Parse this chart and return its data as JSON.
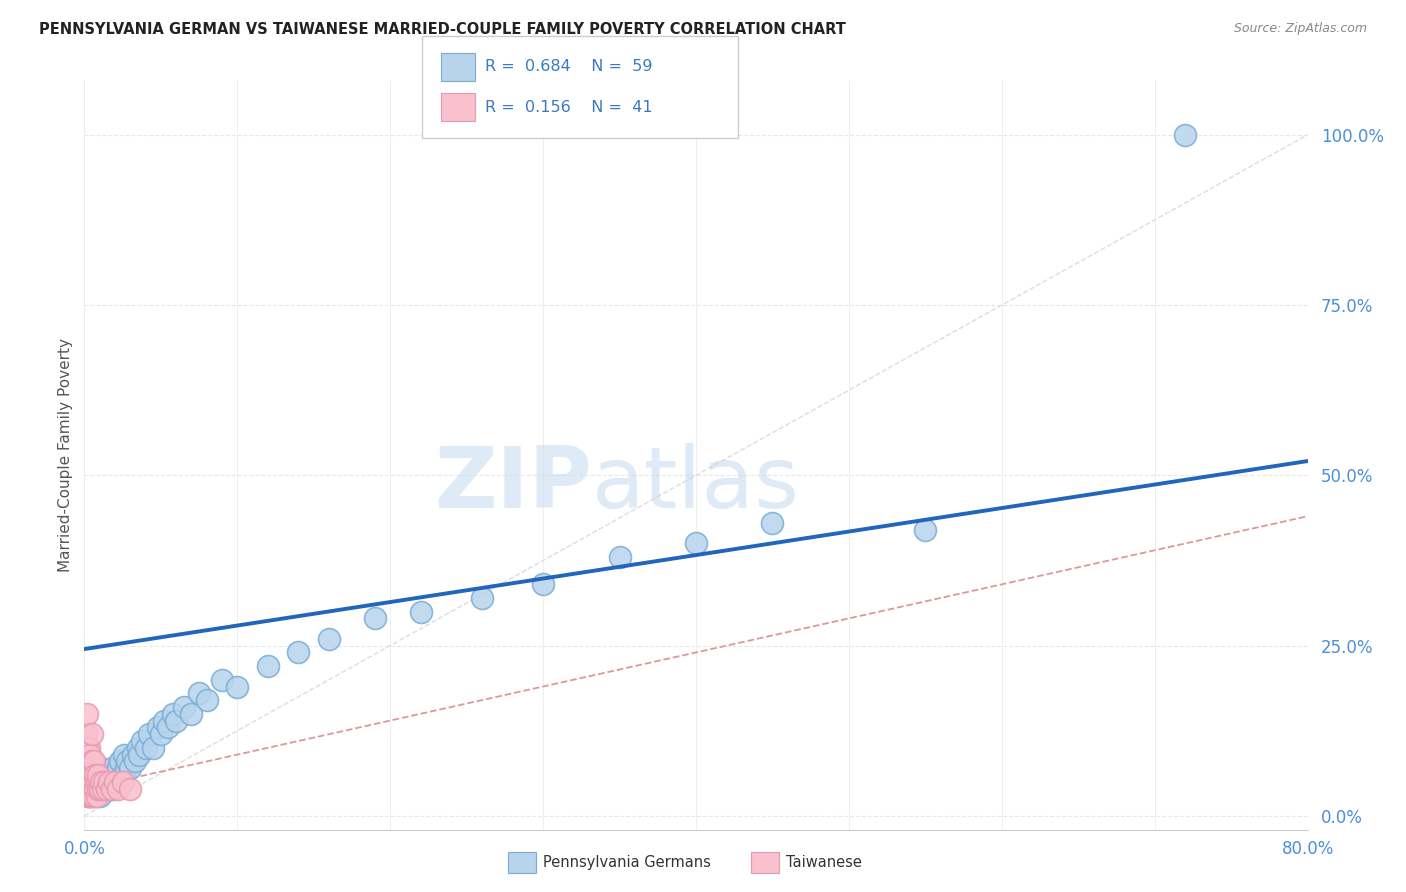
{
  "title": "PENNSYLVANIA GERMAN VS TAIWANESE MARRIED-COUPLE FAMILY POVERTY CORRELATION CHART",
  "source": "Source: ZipAtlas.com",
  "ylabel": "Married-Couple Family Poverty",
  "ytick_labels": [
    "0.0%",
    "25.0%",
    "50.0%",
    "75.0%",
    "100.0%"
  ],
  "ytick_values": [
    0.0,
    0.25,
    0.5,
    0.75,
    1.0
  ],
  "xmin": 0.0,
  "xmax": 0.8,
  "ymin": -0.02,
  "ymax": 1.08,
  "watermark_zip": "ZIP",
  "watermark_atlas": "atlas",
  "legend_R1": "0.684",
  "legend_N1": "59",
  "legend_R2": "0.156",
  "legend_N2": "41",
  "pa_german_fill": "#b8d4ed",
  "pa_german_edge": "#7aadd4",
  "taiwanese_fill": "#f9c0ce",
  "taiwanese_edge": "#e899af",
  "regression_pa_color": "#2266bb",
  "regression_tw_color": "#dd9999",
  "diagonal_color": "#dddddd",
  "grid_color": "#e8e8e8",
  "tick_color": "#4a90d9",
  "title_color": "#222222",
  "source_color": "#888888",
  "ylabel_color": "#555555",
  "bg_color": "#ffffff",
  "regression_pa_intercept": 0.245,
  "regression_pa_slope": 0.345,
  "regression_tw_intercept": 0.04,
  "regression_tw_slope": 0.5,
  "pa_scatter_x": [
    0.003,
    0.004,
    0.005,
    0.006,
    0.007,
    0.008,
    0.009,
    0.01,
    0.01,
    0.01,
    0.012,
    0.013,
    0.014,
    0.015,
    0.016,
    0.017,
    0.018,
    0.018,
    0.019,
    0.02,
    0.022,
    0.023,
    0.025,
    0.026,
    0.027,
    0.028,
    0.03,
    0.032,
    0.033,
    0.035,
    0.036,
    0.038,
    0.04,
    0.042,
    0.045,
    0.048,
    0.05,
    0.052,
    0.055,
    0.058,
    0.06,
    0.065,
    0.07,
    0.075,
    0.08,
    0.09,
    0.1,
    0.12,
    0.14,
    0.16,
    0.19,
    0.22,
    0.26,
    0.3,
    0.35,
    0.4,
    0.45,
    0.55,
    0.72
  ],
  "pa_scatter_y": [
    0.04,
    0.03,
    0.05,
    0.04,
    0.03,
    0.05,
    0.04,
    0.03,
    0.05,
    0.07,
    0.04,
    0.05,
    0.06,
    0.04,
    0.06,
    0.05,
    0.04,
    0.07,
    0.06,
    0.05,
    0.07,
    0.08,
    0.06,
    0.09,
    0.07,
    0.08,
    0.07,
    0.09,
    0.08,
    0.1,
    0.09,
    0.11,
    0.1,
    0.12,
    0.1,
    0.13,
    0.12,
    0.14,
    0.13,
    0.15,
    0.14,
    0.16,
    0.15,
    0.18,
    0.17,
    0.2,
    0.19,
    0.22,
    0.24,
    0.26,
    0.29,
    0.3,
    0.32,
    0.34,
    0.38,
    0.4,
    0.43,
    0.42,
    1.0
  ],
  "tw_scatter_x": [
    0.001,
    0.001,
    0.001,
    0.002,
    0.002,
    0.002,
    0.002,
    0.002,
    0.003,
    0.003,
    0.003,
    0.003,
    0.004,
    0.004,
    0.004,
    0.005,
    0.005,
    0.005,
    0.005,
    0.005,
    0.005,
    0.006,
    0.006,
    0.006,
    0.007,
    0.007,
    0.008,
    0.008,
    0.009,
    0.009,
    0.01,
    0.011,
    0.012,
    0.013,
    0.015,
    0.016,
    0.018,
    0.02,
    0.022,
    0.025,
    0.03
  ],
  "tw_scatter_y": [
    0.04,
    0.07,
    0.12,
    0.03,
    0.05,
    0.08,
    0.1,
    0.15,
    0.03,
    0.05,
    0.07,
    0.1,
    0.03,
    0.06,
    0.09,
    0.03,
    0.04,
    0.05,
    0.06,
    0.08,
    0.12,
    0.03,
    0.05,
    0.08,
    0.04,
    0.06,
    0.03,
    0.05,
    0.04,
    0.06,
    0.04,
    0.05,
    0.04,
    0.05,
    0.04,
    0.05,
    0.04,
    0.05,
    0.04,
    0.05,
    0.04
  ]
}
